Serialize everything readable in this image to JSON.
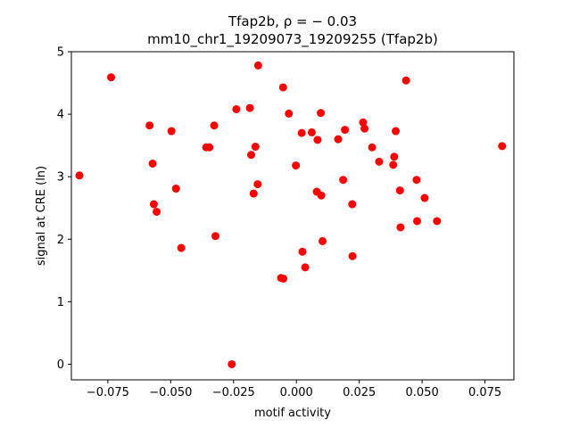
{
  "chart_data": {
    "type": "scatter",
    "title_line1": "Tfap2b, ρ = − 0.03",
    "title_line2": "mm10_chr1_19209073_19209255 (Tfap2b)",
    "xlabel": "motif activity",
    "ylabel": "signal at CRE (ln)",
    "xlim": [
      -0.0895,
      0.0865
    ],
    "ylim": [
      -0.25,
      5.0
    ],
    "xticks": [
      -0.075,
      -0.05,
      -0.025,
      0.0,
      0.025,
      0.05,
      0.075
    ],
    "xtick_labels": [
      "−0.075",
      "−0.050",
      "−0.025",
      "0.000",
      "0.025",
      "0.050",
      "0.075"
    ],
    "yticks": [
      0,
      1,
      2,
      3,
      4,
      5
    ],
    "ytick_labels": [
      "0",
      "1",
      "2",
      "3",
      "4",
      "5"
    ],
    "marker_color": "#ff0000",
    "grid": false,
    "legend": "none",
    "points": [
      [
        -0.0863,
        3.02
      ],
      [
        -0.0737,
        4.59
      ],
      [
        -0.0584,
        3.82
      ],
      [
        -0.0572,
        3.21
      ],
      [
        -0.0567,
        2.56
      ],
      [
        -0.0556,
        2.44
      ],
      [
        -0.0497,
        3.73
      ],
      [
        -0.0479,
        2.81
      ],
      [
        -0.0458,
        1.86
      ],
      [
        -0.0359,
        3.47
      ],
      [
        -0.0346,
        3.47
      ],
      [
        -0.0327,
        3.82
      ],
      [
        -0.0322,
        2.05
      ],
      [
        -0.0257,
        0.0
      ],
      [
        -0.0239,
        4.08
      ],
      [
        -0.0185,
        4.1
      ],
      [
        -0.018,
        3.35
      ],
      [
        -0.017,
        2.73
      ],
      [
        -0.0163,
        3.48
      ],
      [
        -0.0154,
        2.88
      ],
      [
        -0.0152,
        4.78
      ],
      [
        -0.0061,
        1.38
      ],
      [
        -0.0053,
        4.43
      ],
      [
        -0.0052,
        1.37
      ],
      [
        -0.003,
        4.01
      ],
      [
        -0.0002,
        3.18
      ],
      [
        0.0021,
        3.7
      ],
      [
        0.0024,
        1.8
      ],
      [
        0.0035,
        1.55
      ],
      [
        0.0061,
        3.71
      ],
      [
        0.0081,
        2.76
      ],
      [
        0.0084,
        3.59
      ],
      [
        0.0097,
        4.02
      ],
      [
        0.0099,
        2.7
      ],
      [
        0.0104,
        1.97
      ],
      [
        0.0166,
        3.6
      ],
      [
        0.0186,
        2.95
      ],
      [
        0.0193,
        3.75
      ],
      [
        0.0222,
        2.56
      ],
      [
        0.0223,
        1.73
      ],
      [
        0.0265,
        3.87
      ],
      [
        0.0271,
        3.77
      ],
      [
        0.0301,
        3.47
      ],
      [
        0.0329,
        3.24
      ],
      [
        0.0385,
        3.19
      ],
      [
        0.0389,
        3.32
      ],
      [
        0.0395,
        3.73
      ],
      [
        0.0412,
        2.78
      ],
      [
        0.0414,
        2.19
      ],
      [
        0.0436,
        4.54
      ],
      [
        0.0478,
        2.95
      ],
      [
        0.048,
        2.29
      ],
      [
        0.051,
        2.66
      ],
      [
        0.0559,
        2.29
      ],
      [
        0.0818,
        3.49
      ]
    ]
  }
}
